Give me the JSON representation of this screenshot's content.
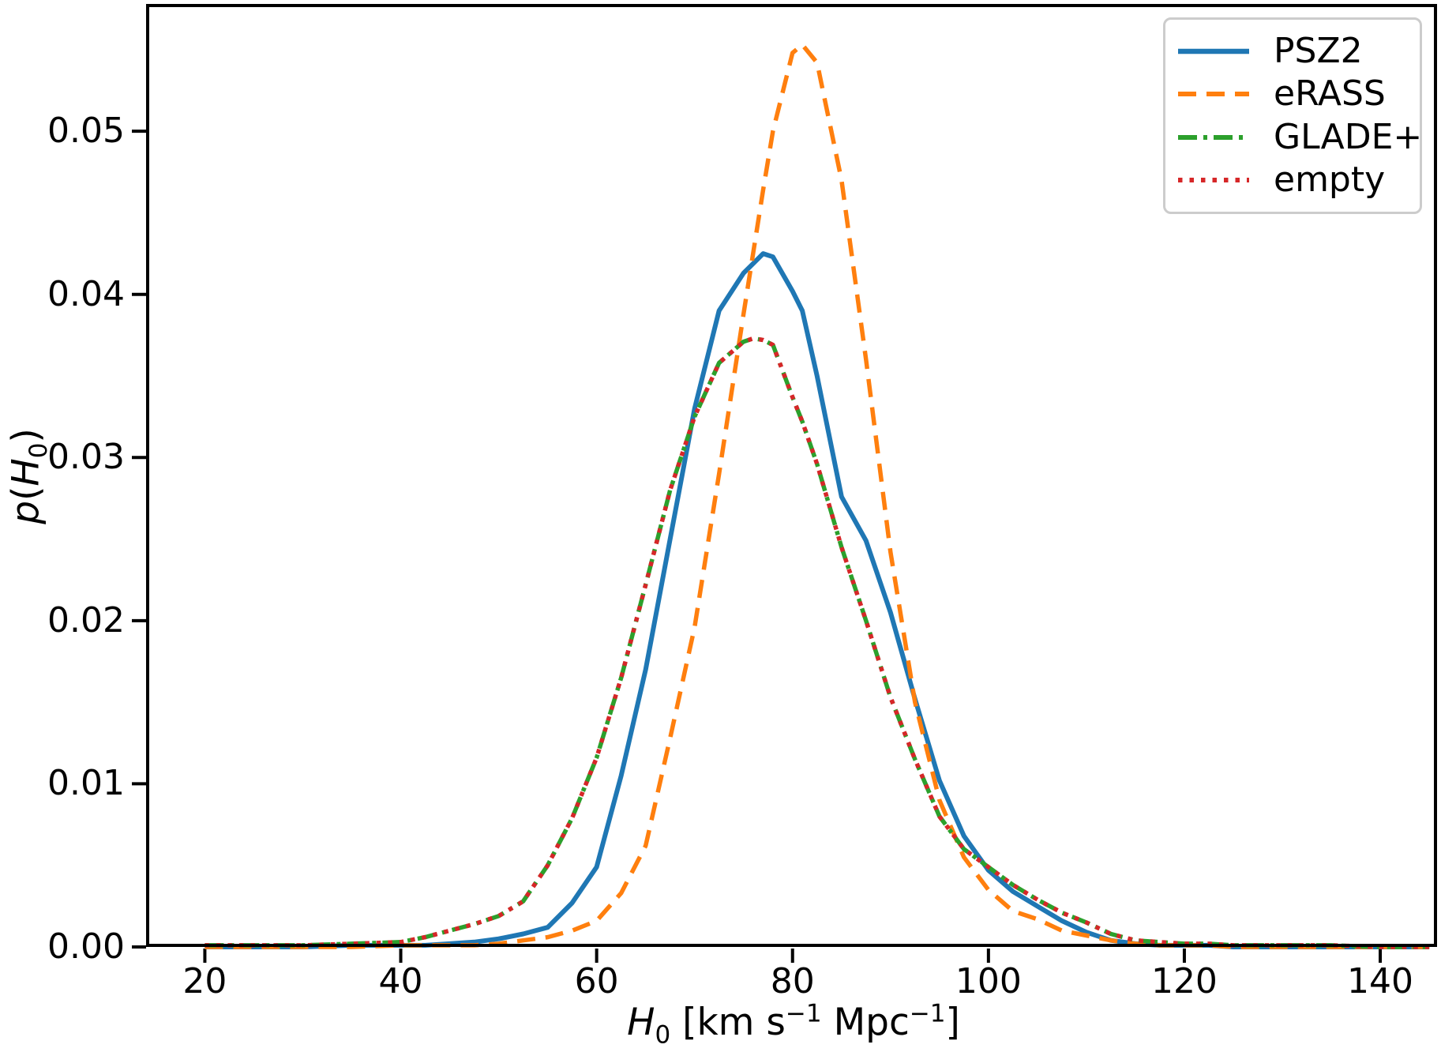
{
  "figure": {
    "background": "#ffffff",
    "spine_color": "#000000",
    "tick_color": "#000000"
  },
  "chart_data": {
    "type": "line",
    "title": "",
    "xlabel_parts": [
      {
        "text": "H",
        "italic": true
      },
      {
        "text": "0",
        "sub": true
      },
      {
        "text": " [km s",
        "italic": false
      },
      {
        "text": "−1",
        "sup": true
      },
      {
        "text": " Mpc",
        "italic": false
      },
      {
        "text": "−1",
        "sup": true
      },
      {
        "text": "]",
        "italic": false
      }
    ],
    "ylabel_parts": [
      {
        "text": "p",
        "italic": true
      },
      {
        "text": "(",
        "italic": false
      },
      {
        "text": "H",
        "italic": true
      },
      {
        "text": "0",
        "sub": true
      },
      {
        "text": ")",
        "italic": false
      }
    ],
    "xlim": [
      14,
      145.8
    ],
    "ylim": [
      0,
      0.0578
    ],
    "grid": false,
    "legend_position": "upper right",
    "x_ticks": [
      {
        "value": 20,
        "label": "20"
      },
      {
        "value": 40,
        "label": "40"
      },
      {
        "value": 60,
        "label": "60"
      },
      {
        "value": 80,
        "label": "80"
      },
      {
        "value": 100,
        "label": "100"
      },
      {
        "value": 120,
        "label": "120"
      },
      {
        "value": 140,
        "label": "140"
      }
    ],
    "y_ticks": [
      {
        "value": 0.0,
        "label": "0.00"
      },
      {
        "value": 0.01,
        "label": "0.01"
      },
      {
        "value": 0.02,
        "label": "0.02"
      },
      {
        "value": 0.03,
        "label": "0.03"
      },
      {
        "value": 0.04,
        "label": "0.04"
      },
      {
        "value": 0.05,
        "label": "0.05"
      }
    ],
    "x": [
      20,
      25,
      30,
      35,
      40,
      42.5,
      45,
      47.5,
      50,
      52.5,
      55,
      57.5,
      60,
      62.5,
      65,
      67.5,
      70,
      72.5,
      75,
      76,
      77,
      78,
      80,
      81,
      82.5,
      85,
      87.5,
      90,
      92.5,
      95,
      97.5,
      100,
      102.5,
      105,
      107.5,
      110,
      112.5,
      115,
      117.5,
      120,
      122.5,
      125,
      130,
      135,
      140,
      145
    ],
    "series": [
      {
        "name": "PSZ2",
        "color": "#1f77b4",
        "style": "solid",
        "peak": {
          "x": 77,
          "y": 0.0425
        },
        "values": [
          0,
          0,
          0,
          0.0001,
          0.0001,
          0.0001,
          0.0002,
          0.0003,
          0.0005,
          0.0008,
          0.0012,
          0.0027,
          0.0049,
          0.0105,
          0.017,
          0.025,
          0.033,
          0.039,
          0.0413,
          0.0419,
          0.0425,
          0.0423,
          0.0402,
          0.039,
          0.035,
          0.0276,
          0.0249,
          0.0205,
          0.0152,
          0.0102,
          0.0068,
          0.0047,
          0.0034,
          0.0025,
          0.0016,
          0.0009,
          0.0004,
          0.0002,
          0.0001,
          0.0001,
          0.0001,
          0,
          0,
          0,
          0,
          0
        ]
      },
      {
        "name": "eRASS",
        "color": "#ff7f0e",
        "style": "dashed",
        "peak": {
          "x": 81,
          "y": 0.0553
        },
        "values": [
          0,
          0,
          0,
          0,
          0.0001,
          0.0001,
          0.0001,
          0.0001,
          0.0002,
          0.0004,
          0.0006,
          0.001,
          0.0016,
          0.0033,
          0.0062,
          0.0128,
          0.0196,
          0.029,
          0.0388,
          0.0426,
          0.0464,
          0.05,
          0.0548,
          0.0553,
          0.0542,
          0.047,
          0.036,
          0.0242,
          0.015,
          0.009,
          0.0055,
          0.0035,
          0.0022,
          0.0017,
          0.001,
          0.0007,
          0.0004,
          0.0002,
          0.0001,
          0.0001,
          0.0001,
          0,
          0,
          0,
          0,
          0
        ]
      },
      {
        "name": "GLADE+",
        "color": "#2ca02c",
        "style": "dashdot",
        "peak": {
          "x": 76,
          "y": 0.0373
        },
        "values": [
          0.0001,
          0.0001,
          0.0001,
          0.0002,
          0.0003,
          0.0006,
          0.001,
          0.0014,
          0.0019,
          0.0028,
          0.005,
          0.0079,
          0.0116,
          0.0165,
          0.0222,
          0.028,
          0.0325,
          0.0358,
          0.0371,
          0.0373,
          0.0372,
          0.0369,
          0.0337,
          0.0322,
          0.0296,
          0.0245,
          0.02,
          0.0153,
          0.0115,
          0.008,
          0.006,
          0.0049,
          0.0038,
          0.0029,
          0.0021,
          0.0015,
          0.0008,
          0.0004,
          0.0003,
          0.0002,
          0.0002,
          0.0001,
          0.0001,
          0.0001,
          0,
          0
        ]
      },
      {
        "name": "empty",
        "color": "#d62728",
        "style": "dotted",
        "peak": {
          "x": 76,
          "y": 0.0373
        },
        "values": [
          0.0001,
          0.0001,
          0.0001,
          0.0002,
          0.0003,
          0.0006,
          0.001,
          0.0014,
          0.0019,
          0.0028,
          0.005,
          0.0079,
          0.0116,
          0.0165,
          0.0222,
          0.028,
          0.0325,
          0.0358,
          0.0371,
          0.0373,
          0.0372,
          0.0369,
          0.0337,
          0.0322,
          0.0296,
          0.0245,
          0.02,
          0.0153,
          0.0115,
          0.008,
          0.006,
          0.0049,
          0.0038,
          0.0029,
          0.0021,
          0.0015,
          0.0008,
          0.0004,
          0.0003,
          0.0002,
          0.0002,
          0.0001,
          0.0001,
          0.0001,
          0,
          0
        ]
      }
    ]
  }
}
